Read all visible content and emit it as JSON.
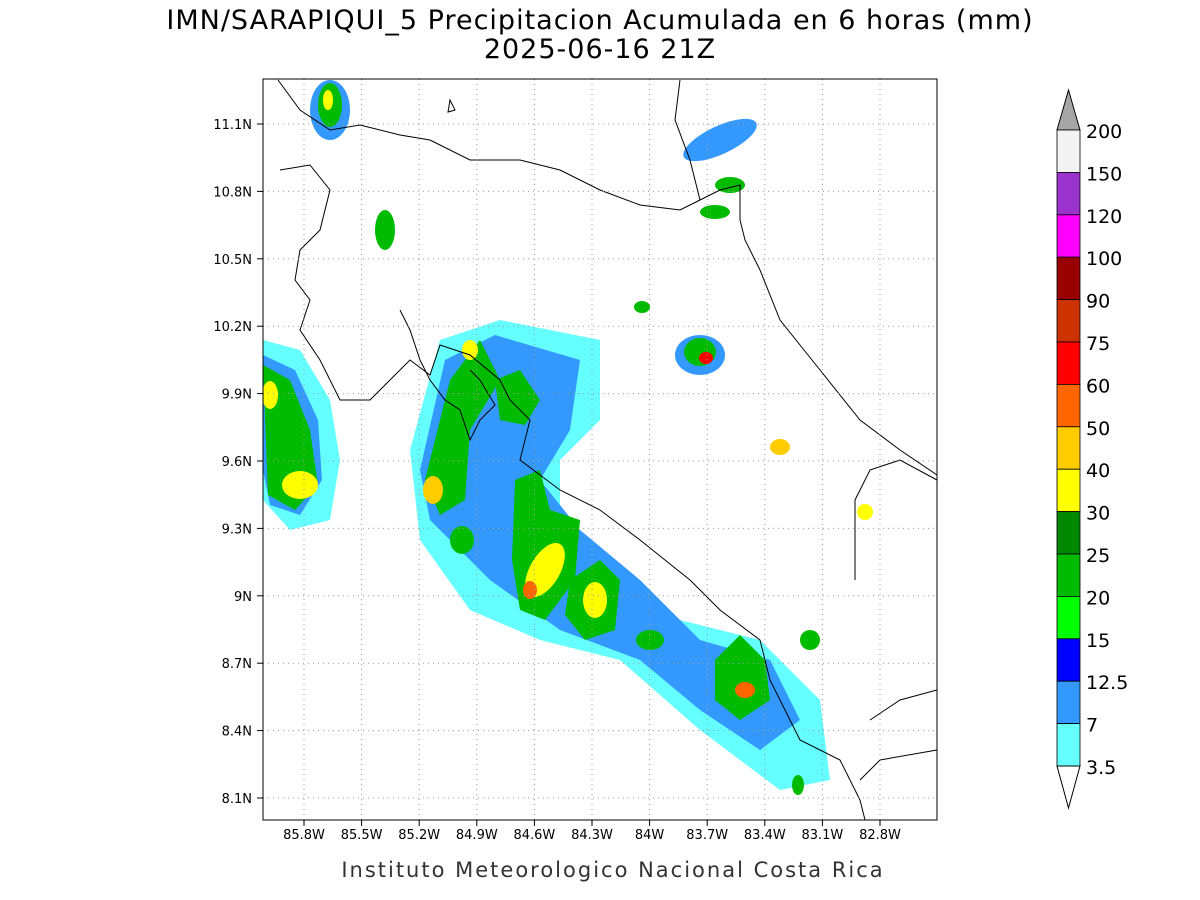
{
  "header": {
    "title": "IMN/SARAPIQUI_5 Precipitacion Acumulada en 6 horas (mm)",
    "subtitle": "2025-06-16 21Z"
  },
  "map": {
    "lat_labels": [
      "11.1N",
      "10.8N",
      "10.5N",
      "10.2N",
      "9.9N",
      "9.6N",
      "9.3N",
      "9N",
      "8.7N",
      "8.4N",
      "8.1N"
    ],
    "lon_labels": [
      "85.8W",
      "85.5W",
      "85.2W",
      "84.9W",
      "84.6W",
      "84.3W",
      "84W",
      "83.7W",
      "83.4W",
      "83.1W",
      "82.8W"
    ]
  },
  "colorbar": {
    "labels": [
      "200",
      "150",
      "120",
      "100",
      "90",
      "75",
      "60",
      "50",
      "40",
      "30",
      "25",
      "20",
      "15",
      "12.5",
      "7",
      "3.5"
    ],
    "colors": [
      "#f2f2f2",
      "#9933cc",
      "#ff00ff",
      "#990000",
      "#cc3300",
      "#ff0000",
      "#ff6600",
      "#ffcc00",
      "#ffff00",
      "#008800",
      "#00bb00",
      "#00ff00",
      "#0000ff",
      "#3399ff",
      "#66ffff"
    ],
    "over_color": "#a6a6a6",
    "under_color": "#ffffff"
  },
  "footer": "Instituto Meteorologico Nacional Costa Rica"
}
